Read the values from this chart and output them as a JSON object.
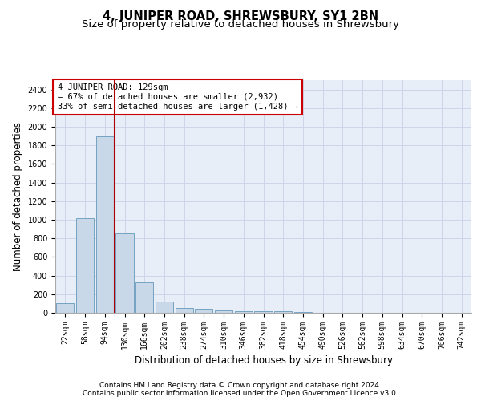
{
  "title": "4, JUNIPER ROAD, SHREWSBURY, SY1 2BN",
  "subtitle": "Size of property relative to detached houses in Shrewsbury",
  "xlabel": "Distribution of detached houses by size in Shrewsbury",
  "ylabel": "Number of detached properties",
  "categories": [
    "22sqm",
    "58sqm",
    "94sqm",
    "130sqm",
    "166sqm",
    "202sqm",
    "238sqm",
    "274sqm",
    "310sqm",
    "346sqm",
    "382sqm",
    "418sqm",
    "454sqm",
    "490sqm",
    "526sqm",
    "562sqm",
    "598sqm",
    "634sqm",
    "670sqm",
    "706sqm",
    "742sqm"
  ],
  "values": [
    100,
    1020,
    1900,
    855,
    325,
    120,
    55,
    45,
    30,
    20,
    15,
    20,
    5,
    3,
    2,
    1,
    1,
    1,
    1,
    1,
    1
  ],
  "bar_color": "#c8d8e8",
  "bar_edge_color": "#6699bb",
  "vline_position": 2.5,
  "vline_color": "#aa0000",
  "annotation_text": "4 JUNIPER ROAD: 129sqm\n← 67% of detached houses are smaller (2,932)\n33% of semi-detached houses are larger (1,428) →",
  "annotation_box_facecolor": "#ffffff",
  "annotation_box_edgecolor": "#cc0000",
  "ylim": [
    0,
    2500
  ],
  "yticks": [
    0,
    200,
    400,
    600,
    800,
    1000,
    1200,
    1400,
    1600,
    1800,
    2000,
    2200,
    2400
  ],
  "grid_color": "#cdd6e8",
  "background_color": "#e8eef8",
  "footer_line1": "Contains HM Land Registry data © Crown copyright and database right 2024.",
  "footer_line2": "Contains public sector information licensed under the Open Government Licence v3.0.",
  "title_fontsize": 10.5,
  "subtitle_fontsize": 9.5,
  "tick_fontsize": 7,
  "ylabel_fontsize": 8.5,
  "xlabel_fontsize": 8.5,
  "footer_fontsize": 6.5,
  "annotation_fontsize": 7.5
}
